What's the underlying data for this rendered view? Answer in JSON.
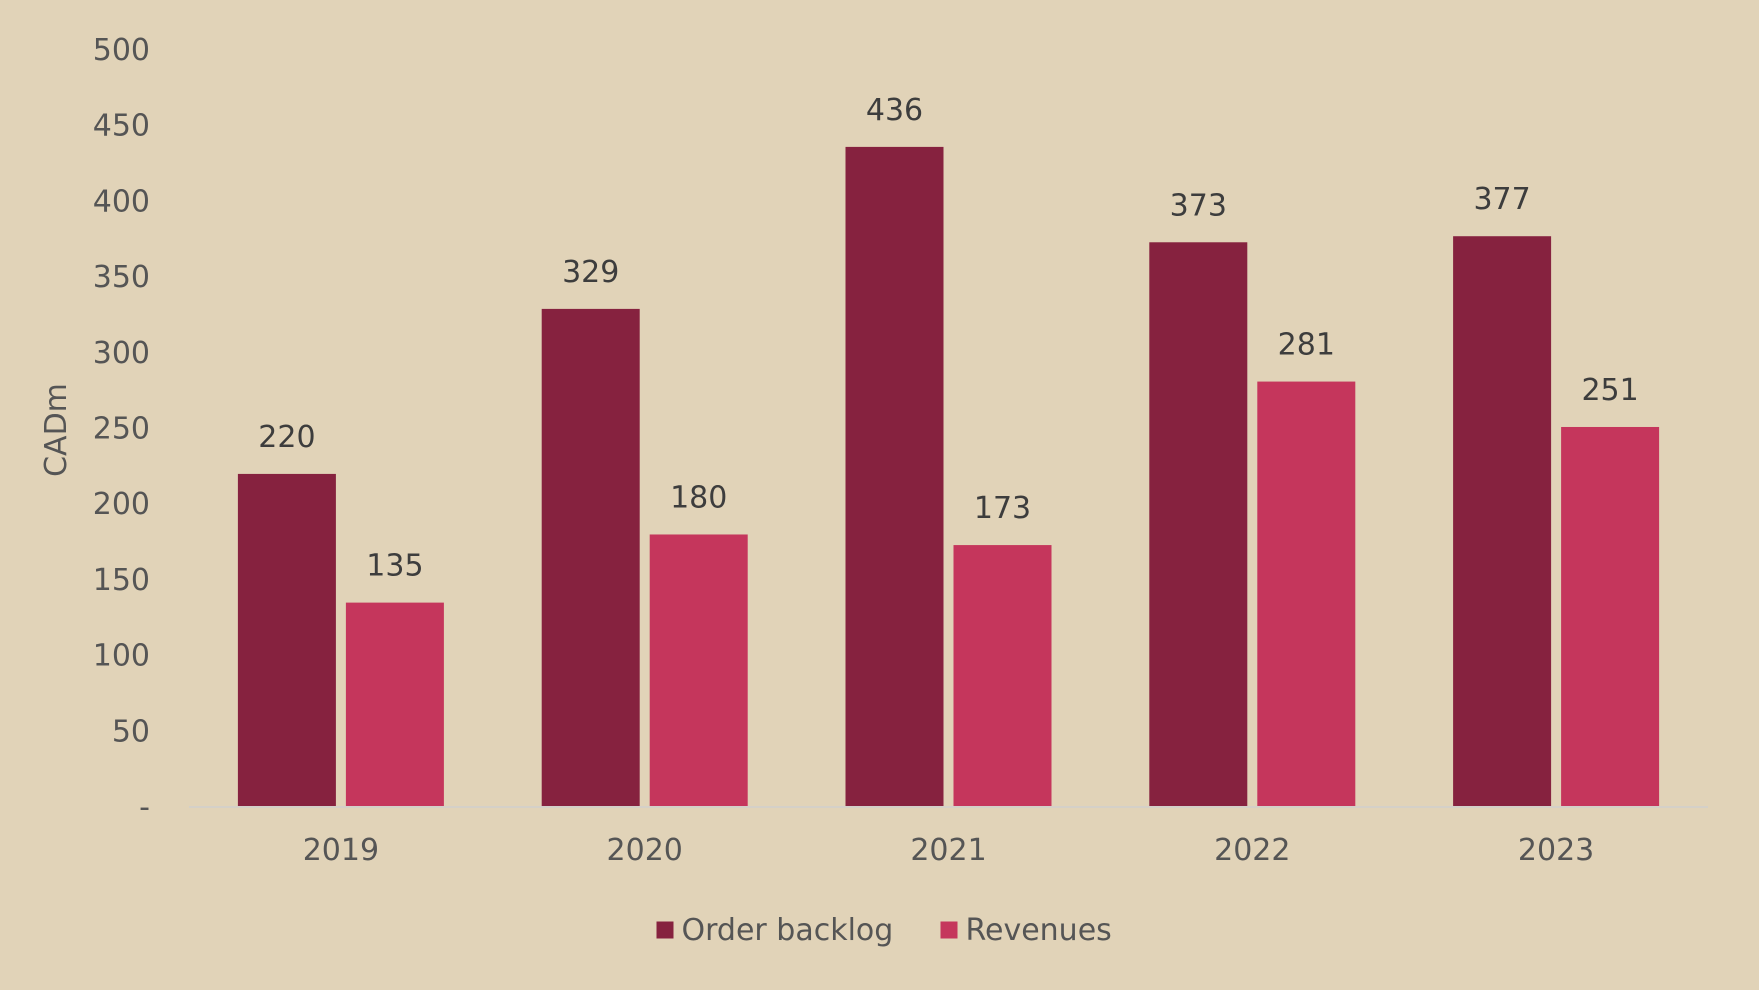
{
  "chart_data": {
    "type": "bar",
    "categories": [
      "2019",
      "2020",
      "2021",
      "2022",
      "2023"
    ],
    "series": [
      {
        "name": "Order backlog",
        "color": "#86223f",
        "values": [
          220,
          329,
          436,
          373,
          377
        ]
      },
      {
        "name": "Revenues",
        "color": "#c5365c",
        "values": [
          135,
          180,
          173,
          281,
          251
        ]
      }
    ],
    "ylabel": "CADm",
    "ylim": [
      0,
      500
    ],
    "yticks": [
      {
        "value": 0,
        "label": "-"
      },
      {
        "value": 50,
        "label": "50"
      },
      {
        "value": 100,
        "label": "100"
      },
      {
        "value": 150,
        "label": "150"
      },
      {
        "value": 200,
        "label": "200"
      },
      {
        "value": 250,
        "label": "250"
      },
      {
        "value": 300,
        "label": "300"
      },
      {
        "value": 350,
        "label": "350"
      },
      {
        "value": 400,
        "label": "400"
      },
      {
        "value": 450,
        "label": "450"
      },
      {
        "value": 500,
        "label": "500"
      }
    ],
    "grid": false,
    "legend_position": "bottom-center",
    "data_labels": true
  }
}
